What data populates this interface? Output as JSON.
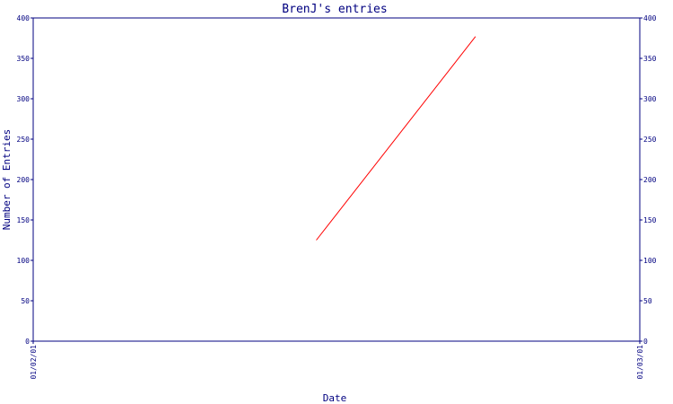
{
  "chart_data": {
    "type": "line",
    "title": "BrenJ's entries",
    "xlabel": "Date",
    "ylabel": "Number of Entries",
    "x_tick_labels": [
      "01/02/01",
      "01/03/01"
    ],
    "y_ticks": [
      0,
      50,
      100,
      150,
      200,
      250,
      300,
      350,
      400
    ],
    "ylim": [
      0,
      400
    ],
    "xlim": [
      "2001-01-02",
      "2001-01-03"
    ],
    "grid": false,
    "right_axis": true,
    "series": [
      {
        "color": "#ff0000",
        "x": [
          "2001-01-02T11:12",
          "2001-01-02T17:30"
        ],
        "values": [
          125,
          377
        ]
      }
    ]
  }
}
